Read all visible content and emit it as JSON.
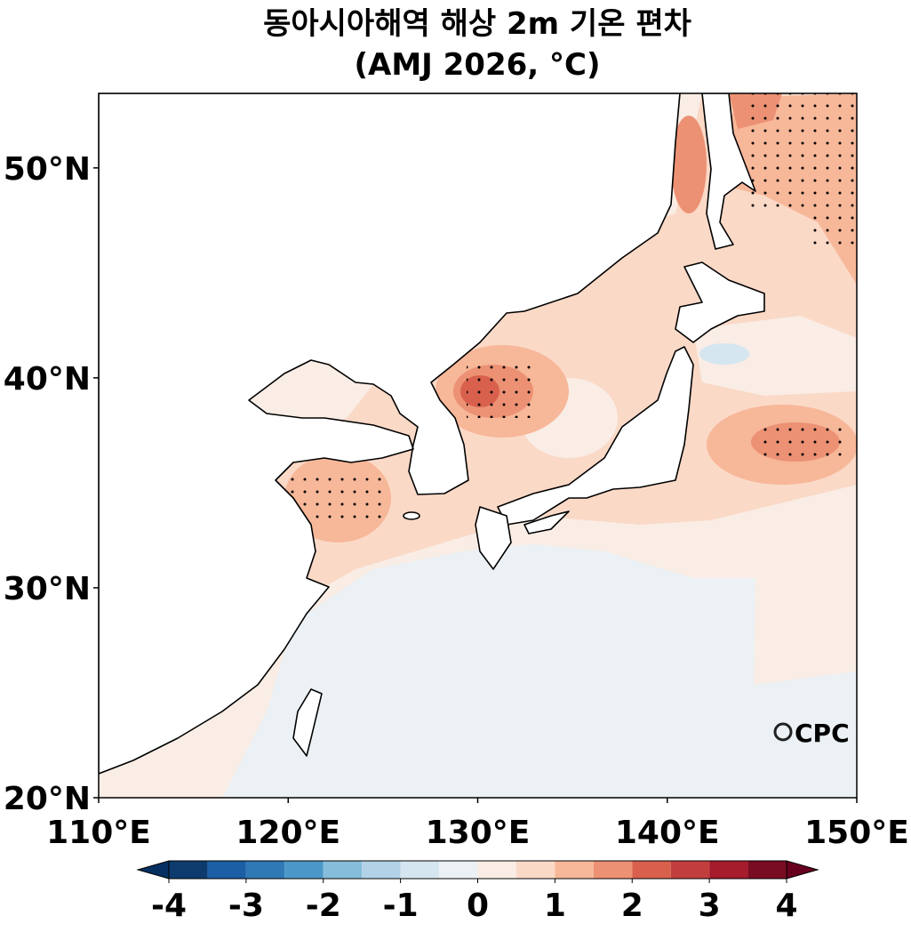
{
  "title": "동아시아해역 해상 2m 기온 편차",
  "subtitle": "(AMJ 2026, °C)",
  "map": {
    "xlim": [
      110,
      150
    ],
    "ylim": [
      20,
      53.55
    ],
    "xticks": [
      {
        "value": 110,
        "label": "110°E"
      },
      {
        "value": 120,
        "label": "120°E"
      },
      {
        "value": 130,
        "label": "130°E"
      },
      {
        "value": 140,
        "label": "140°E"
      },
      {
        "value": 150,
        "label": "150°E"
      }
    ],
    "yticks": [
      {
        "value": 20,
        "label": "20°N"
      },
      {
        "value": 30,
        "label": "30°N"
      },
      {
        "value": 40,
        "label": "40°N"
      },
      {
        "value": 50,
        "label": "50°N"
      }
    ]
  },
  "colorbar": {
    "levels": [
      -4,
      -3.5,
      -3,
      -2.5,
      -2,
      -1.5,
      -1,
      -0.5,
      0,
      0.5,
      1,
      1.5,
      2,
      2.5,
      3,
      3.5,
      4
    ],
    "colors": [
      "#0d3b6e",
      "#1c5fa4",
      "#2f79b5",
      "#4b98c8",
      "#86bdda",
      "#b2d3e7",
      "#d6e6f0",
      "#ebf1f4",
      "#f9ede5",
      "#fbd9c7",
      "#f7b799",
      "#ec9174",
      "#d8604d",
      "#c13e3c",
      "#a51c2c",
      "#7a0c22"
    ],
    "extend_colors": [
      "#053061",
      "#67001f"
    ],
    "ticks": [
      -4,
      -3,
      -2,
      -1,
      0,
      1,
      2,
      3,
      4
    ]
  },
  "logo": "CPC"
}
